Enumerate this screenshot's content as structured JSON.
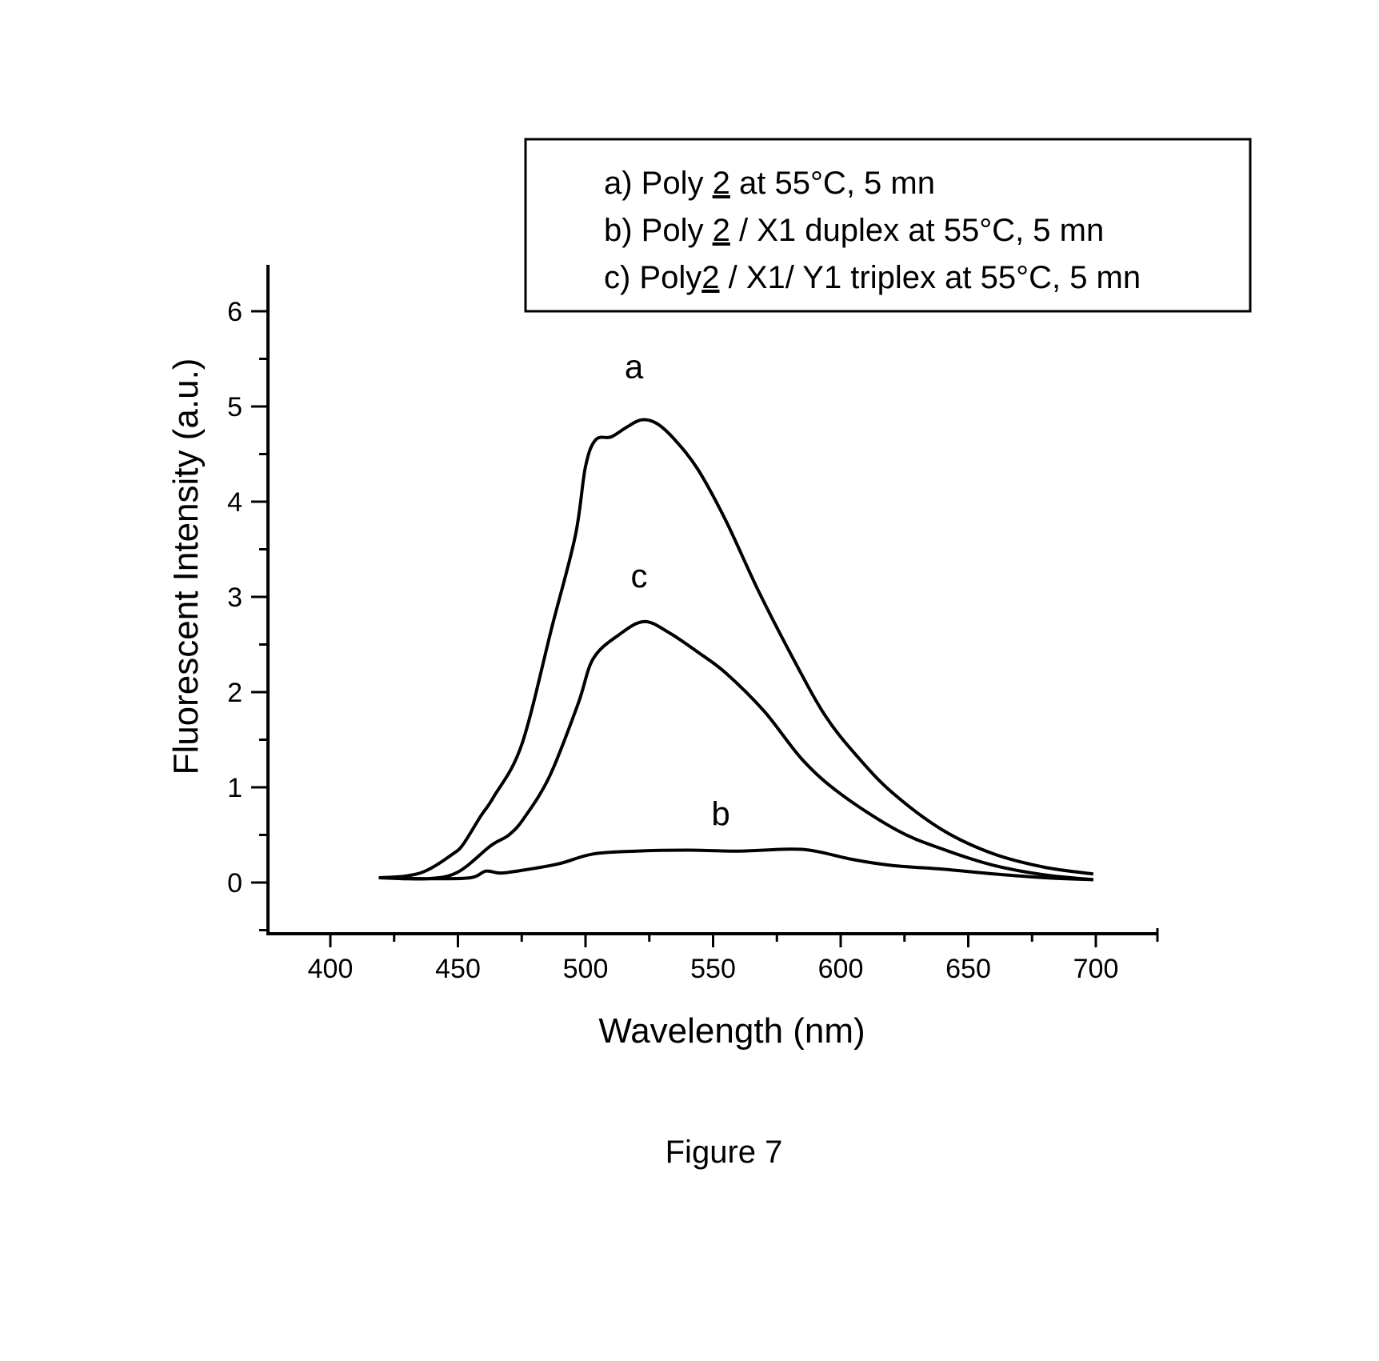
{
  "figure": {
    "caption": "Figure 7"
  },
  "legend": {
    "items": [
      {
        "prefix": "a) Poly ",
        "underlined": "2",
        "suffix": " at 55°C, 5 mn"
      },
      {
        "prefix": "b) Poly ",
        "underlined": "2",
        "suffix": " / X1 duplex at 55°C, 5 mn"
      },
      {
        "prefix": "c) Poly",
        "underlined": "2",
        "suffix": " / X1/ Y1 triplex at 55°C, 5 mn"
      }
    ]
  },
  "colors": {
    "line": "#000000",
    "background": "#ffffff"
  },
  "chart_data": {
    "type": "line",
    "title": "",
    "xlabel": "Wavelength (nm)",
    "ylabel": "Fluorescent Intensity (a.u.)",
    "xlim": [
      375,
      725
    ],
    "ylim": [
      -0.53,
      6.5
    ],
    "x_ticks": [
      400,
      450,
      500,
      550,
      600,
      650,
      700
    ],
    "y_ticks": [
      0,
      1,
      2,
      3,
      4,
      5,
      6
    ],
    "grid": false,
    "legend_position": "top-right (outside plot, boxed)",
    "annotations": [
      {
        "text": "a",
        "x": 519,
        "y": 5.3
      },
      {
        "text": "c",
        "x": 521,
        "y": 3.1
      },
      {
        "text": "b",
        "x": 553,
        "y": 0.6
      }
    ],
    "series": [
      {
        "name": "a) Poly 2 at 55°C, 5 mn",
        "label": "a",
        "points": [
          [
            419,
            0.05
          ],
          [
            430,
            0.07
          ],
          [
            438,
            0.13
          ],
          [
            448,
            0.3
          ],
          [
            452,
            0.4
          ],
          [
            459,
            0.7
          ],
          [
            464,
            0.9
          ],
          [
            475,
            1.45
          ],
          [
            487,
            2.7
          ],
          [
            496,
            3.64
          ],
          [
            500,
            4.37
          ],
          [
            504,
            4.65
          ],
          [
            510,
            4.68
          ],
          [
            516,
            4.78
          ],
          [
            522,
            4.86
          ],
          [
            528,
            4.82
          ],
          [
            535,
            4.65
          ],
          [
            544,
            4.34
          ],
          [
            555,
            3.8
          ],
          [
            568,
            3.05
          ],
          [
            582,
            2.32
          ],
          [
            594,
            1.75
          ],
          [
            606,
            1.34
          ],
          [
            620,
            0.95
          ],
          [
            640,
            0.55
          ],
          [
            660,
            0.3
          ],
          [
            680,
            0.16
          ],
          [
            699,
            0.09
          ]
        ]
      },
      {
        "name": "b) Poly 2 / X1 duplex at 55°C, 5 mn",
        "label": "b",
        "points": [
          [
            419,
            0.05
          ],
          [
            440,
            0.04
          ],
          [
            455,
            0.05
          ],
          [
            461,
            0.12
          ],
          [
            467,
            0.1
          ],
          [
            478,
            0.14
          ],
          [
            490,
            0.2
          ],
          [
            503,
            0.3
          ],
          [
            520,
            0.33
          ],
          [
            540,
            0.34
          ],
          [
            560,
            0.33
          ],
          [
            580,
            0.35
          ],
          [
            590,
            0.33
          ],
          [
            605,
            0.24
          ],
          [
            620,
            0.18
          ],
          [
            640,
            0.14
          ],
          [
            660,
            0.09
          ],
          [
            680,
            0.05
          ],
          [
            699,
            0.03
          ]
        ]
      },
      {
        "name": "c) Poly2 / X1/ Y1 triplex at 55°C, 5 mn",
        "label": "c",
        "points": [
          [
            419,
            0.05
          ],
          [
            438,
            0.04
          ],
          [
            450,
            0.11
          ],
          [
            463,
            0.39
          ],
          [
            470,
            0.5
          ],
          [
            476,
            0.68
          ],
          [
            486,
            1.12
          ],
          [
            497,
            1.87
          ],
          [
            503,
            2.35
          ],
          [
            513,
            2.6
          ],
          [
            523,
            2.74
          ],
          [
            533,
            2.62
          ],
          [
            544,
            2.42
          ],
          [
            555,
            2.2
          ],
          [
            570,
            1.8
          ],
          [
            585,
            1.29
          ],
          [
            600,
            0.93
          ],
          [
            622,
            0.55
          ],
          [
            640,
            0.35
          ],
          [
            660,
            0.18
          ],
          [
            680,
            0.08
          ],
          [
            699,
            0.03
          ]
        ]
      }
    ]
  }
}
